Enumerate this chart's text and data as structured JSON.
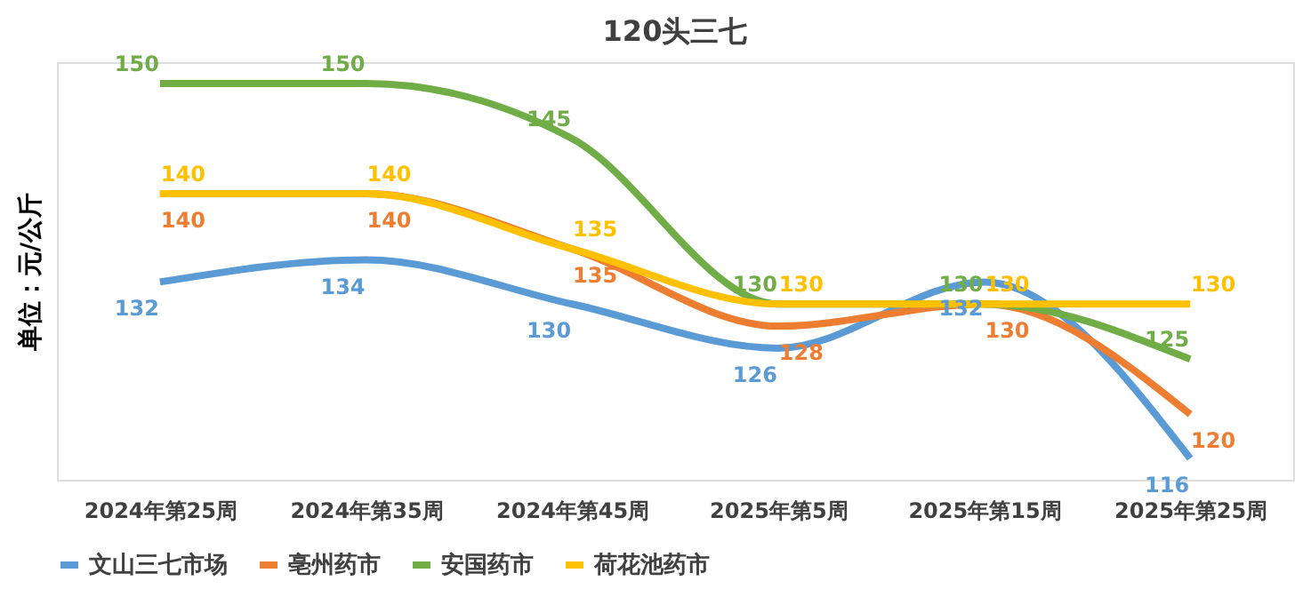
{
  "chart_data": {
    "type": "line",
    "title": "120头三七",
    "ylabel": "单位：元/公斤",
    "categories": [
      "2024年第25周",
      "2024年第35周",
      "2024年第45周",
      "2025年第5周",
      "2025年第15周",
      "2025年第25周"
    ],
    "series": [
      {
        "name": "文山三七市场",
        "color": "#5b9bd5",
        "values": [
          132,
          134,
          130,
          126,
          132,
          116
        ]
      },
      {
        "name": "亳州药市",
        "color": "#ed7d31",
        "values": [
          140,
          140,
          135,
          128,
          130,
          120
        ]
      },
      {
        "name": "安国药市",
        "color": "#70ad47",
        "values": [
          150,
          150,
          145,
          130,
          130,
          125
        ]
      },
      {
        "name": "荷花池药市",
        "color": "#ffc000",
        "values": [
          140,
          140,
          135,
          130,
          130,
          130
        ]
      }
    ],
    "data_labels": true,
    "legend": "bottom",
    "grid": false,
    "tick_labels": "x",
    "marker": "none",
    "line_style": "solid"
  }
}
